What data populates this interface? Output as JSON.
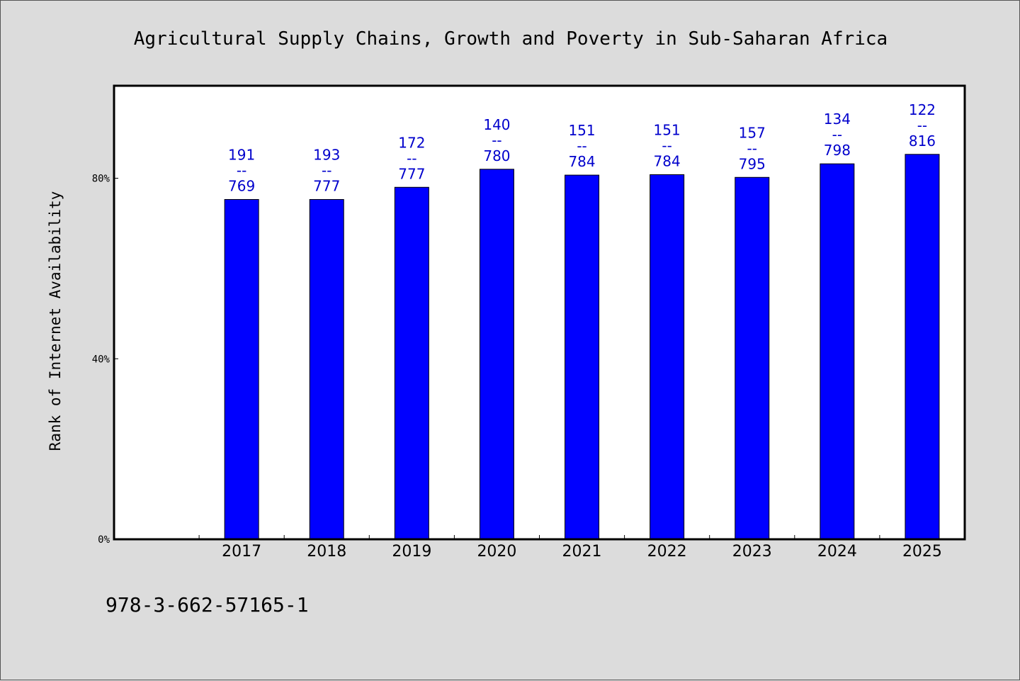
{
  "chart_data": {
    "type": "bar",
    "title": "Agricultural Supply Chains, Growth and Poverty in Sub-Saharan Africa",
    "ylabel": "Rank of Internet Availability",
    "xlabel": "",
    "categories": [
      "2017",
      "2018",
      "2019",
      "2020",
      "2021",
      "2022",
      "2023",
      "2024",
      "2025"
    ],
    "values": [
      75.3,
      75.3,
      78.0,
      82.0,
      80.7,
      80.8,
      80.2,
      83.2,
      85.3
    ],
    "value_unit": "%",
    "data_labels": [
      [
        "191",
        "--",
        "769"
      ],
      [
        "193",
        "--",
        "777"
      ],
      [
        "172",
        "--",
        "777"
      ],
      [
        "140",
        "--",
        "780"
      ],
      [
        "151",
        "--",
        "784"
      ],
      [
        "151",
        "--",
        "784"
      ],
      [
        "157",
        "--",
        "795"
      ],
      [
        "134",
        "--",
        "798"
      ],
      [
        "122",
        "--",
        "816"
      ]
    ],
    "yticks": [
      0,
      40,
      80
    ],
    "ytick_labels": [
      "0%",
      "40%",
      "80%"
    ],
    "ylim": [
      0,
      100.5
    ],
    "xlim_slots": 10,
    "grid": false,
    "legend": "none",
    "bar_color": "#0000ff",
    "label_color": "#0000cc"
  },
  "footer": {
    "isbn": "978-3-662-57165-1"
  }
}
